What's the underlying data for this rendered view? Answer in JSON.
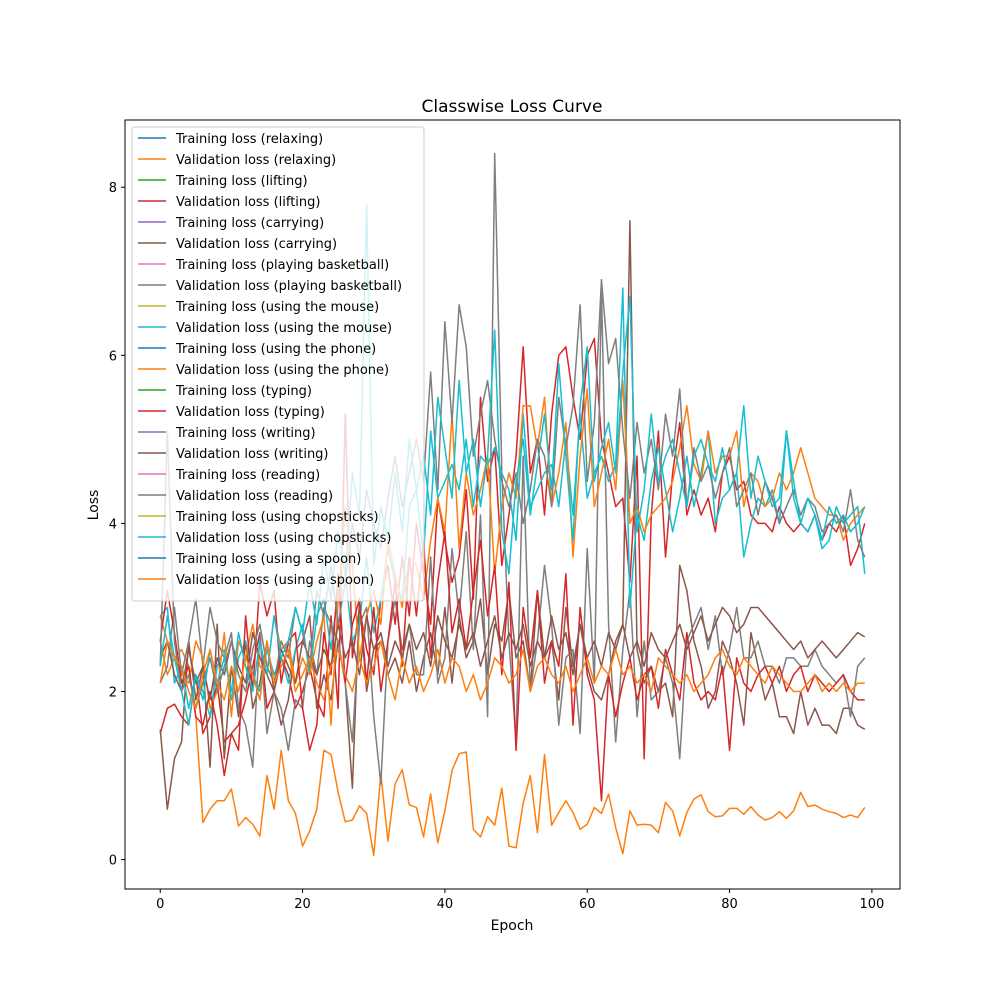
{
  "chart_data": {
    "type": "line",
    "title": "Classwise Loss Curve",
    "xlabel": "Epoch",
    "ylabel": "Loss",
    "xlim": [
      -4.95,
      103.95
    ],
    "ylim": [
      -0.35,
      8.8
    ],
    "xticks": [
      0,
      20,
      40,
      60,
      80,
      100
    ],
    "yticks": [
      0,
      2,
      4,
      6,
      8
    ],
    "grid": false,
    "legend_position": "upper left",
    "series": [
      {
        "name": "Training loss (relaxing)",
        "color": "#1f77b4",
        "values": []
      },
      {
        "name": "Validation loss (relaxing)",
        "color": "#ff7f0e",
        "values": [
          2.6,
          2.2,
          2.4,
          2.5,
          2.3,
          1.7,
          0.44,
          0.6,
          0.7,
          0.7,
          0.84,
          0.4,
          0.5,
          0.42,
          0.28,
          1.0,
          0.6,
          1.3,
          0.7,
          0.55,
          0.16,
          0.34,
          0.6,
          1.3,
          1.25,
          0.8,
          0.45,
          0.47,
          0.64,
          0.55,
          0.05,
          1.02,
          0.22,
          0.9,
          1.07,
          0.65,
          0.62,
          0.27,
          0.78,
          0.2,
          0.58,
          1.06,
          1.26,
          1.28,
          0.36,
          0.27,
          0.51,
          0.41,
          0.85,
          0.16,
          0.14,
          0.67,
          1.0,
          0.32,
          1.25,
          0.41,
          0.56,
          0.7,
          0.56,
          0.36,
          0.42,
          0.62,
          0.55,
          0.78,
          0.38,
          0.07,
          0.58,
          0.41,
          0.42,
          0.41,
          0.32,
          0.68,
          0.58,
          0.28,
          0.56,
          0.72,
          0.77,
          0.57,
          0.51,
          0.52,
          0.61,
          0.61,
          0.54,
          0.63,
          0.53,
          0.47,
          0.5,
          0.57,
          0.49,
          0.58,
          0.8,
          0.63,
          0.65,
          0.6,
          0.57,
          0.55,
          0.5,
          0.53,
          0.5,
          0.62
        ]
      },
      {
        "name": "Training loss (lifting)",
        "color": "#2ca02c",
        "values": []
      },
      {
        "name": "Validation loss (lifting)",
        "color": "#d62728",
        "values": [
          1.5,
          1.8,
          1.85,
          1.7,
          1.6,
          2.2,
          1.5,
          1.7,
          2.1,
          1.4,
          1.5,
          1.6,
          1.9,
          2.3,
          2.7,
          1.8,
          2.0,
          2.4,
          2.2,
          1.8,
          2.0,
          2.3,
          1.9,
          1.7,
          2.9,
          1.8,
          5.3,
          2.4,
          3.0,
          2.5,
          2.2,
          3.1,
          3.5,
          2.8,
          3.6,
          2.9,
          4.0,
          3.4,
          2.8,
          4.3,
          3.8,
          3.3,
          3.6,
          4.4,
          3.1,
          5.5,
          4.5,
          4.9,
          3.5,
          4.1,
          4.8,
          6.1,
          4.6,
          5.0,
          4.1,
          5.3,
          6.0,
          6.1,
          5.5,
          5.0,
          6.0,
          6.2,
          5.0,
          4.6,
          4.2,
          4.3,
          3.3,
          4.8,
          1.2,
          4.1,
          5.1,
          3.6,
          4.6,
          5.2,
          4.1,
          4.4,
          4.1,
          4.3,
          3.9,
          4.6,
          4.8,
          4.4,
          4.5,
          4.1,
          4.0,
          4.0,
          3.9,
          4.2,
          4.0,
          3.9,
          4.0,
          3.9,
          4.1,
          3.8,
          4.0,
          3.9,
          4.1,
          3.5,
          3.7,
          4.0
        ]
      },
      {
        "name": "Training loss (carrying)",
        "color": "#9467bd",
        "values": []
      },
      {
        "name": "Validation loss (carrying)",
        "color": "#8c564b",
        "values": [
          1.55,
          0.6,
          1.2,
          1.4,
          2.6,
          1.9,
          2.3,
          1.1,
          2.8,
          1.2,
          2.3,
          1.7,
          2.6,
          1.8,
          2.1,
          2.6,
          2.0,
          1.6,
          1.9,
          2.5,
          2.6,
          2.9,
          1.8,
          2.2,
          1.9,
          2.6,
          2.1,
          0.85,
          3.1,
          2.0,
          2.5,
          2.6,
          2.2,
          2.4,
          2.1,
          2.6,
          2.0,
          2.4,
          2.7,
          2.2,
          3.0,
          2.1,
          2.9,
          2.4,
          2.6,
          3.1,
          2.2,
          2.8,
          2.6,
          3.2,
          2.4,
          2.6,
          2.0,
          3.2,
          2.4,
          2.6,
          1.9,
          3.0,
          2.3,
          2.8,
          2.3,
          2.0,
          1.9,
          2.2,
          2.6,
          2.8,
          7.6,
          2.5,
          2.1,
          2.3,
          2.0,
          2.1,
          1.7,
          3.5,
          3.2,
          2.6,
          2.3,
          1.8,
          2.0,
          2.6,
          2.4,
          2.1,
          1.6,
          2.7,
          2.3,
          1.9,
          2.1,
          1.7,
          1.7,
          1.5,
          2.0,
          1.6,
          1.8,
          1.6,
          1.6,
          1.5,
          1.8,
          1.8,
          1.6,
          1.55
        ]
      },
      {
        "name": "Training loss (playing basketball)",
        "color": "#e377c2",
        "values": []
      },
      {
        "name": "Validation loss (playing basketball)",
        "color": "#7f7f7f",
        "values": [
          2.1,
          2.3,
          3.0,
          2.2,
          2.6,
          3.1,
          2.3,
          3.0,
          2.6,
          2.4,
          2.7,
          1.8,
          1.6,
          1.1,
          2.7,
          1.5,
          2.0,
          1.8,
          1.3,
          1.9,
          1.8,
          2.6,
          2.2,
          3.0,
          2.8,
          2.6,
          2.1,
          1.4,
          2.8,
          3.0,
          1.7,
          0.9,
          2.6,
          3.1,
          2.5,
          2.8,
          2.2,
          2.2,
          3.6,
          2.1,
          2.4,
          3.7,
          2.9,
          3.9,
          2.5,
          4.1,
          1.7,
          8.4,
          4.6,
          2.6,
          1.4,
          4.8,
          2.0,
          2.6,
          3.5,
          2.8,
          1.6,
          2.4,
          2.5,
          1.5,
          3.7,
          2.1,
          6.8,
          2.8,
          1.4,
          2.5,
          3.2,
          1.7,
          2.6,
          1.9,
          2.0,
          2.4,
          2.1,
          1.2,
          2.6,
          2.8,
          3.0,
          2.5,
          2.9,
          2.2,
          2.5,
          3.0,
          2.4,
          2.4,
          2.6,
          2.3,
          2.3,
          2.1,
          2.4,
          2.4,
          2.3,
          2.3,
          2.5,
          2.3,
          2.2,
          2.1,
          2.2,
          1.7,
          2.3,
          2.4
        ]
      },
      {
        "name": "Training loss (using the mouse)",
        "color": "#bcbd22",
        "values": []
      },
      {
        "name": "Validation loss (using the mouse)",
        "color": "#17becf",
        "values": [
          2.9,
          3.0,
          2.1,
          2.3,
          1.8,
          2.2,
          2.0,
          1.7,
          2.3,
          2.5,
          1.9,
          2.4,
          2.6,
          2.2,
          2.0,
          2.5,
          2.2,
          2.4,
          2.1,
          2.5,
          2.8,
          2.2,
          2.9,
          3.1,
          2.5,
          3.2,
          3.4,
          2.6,
          2.8,
          3.6,
          2.7,
          3.1,
          3.7,
          3.3,
          3.1,
          4.2,
          4.4,
          3.6,
          5.1,
          4.3,
          4.5,
          4.7,
          4.4,
          5.0,
          4.2,
          4.8,
          4.7,
          4.9,
          4.6,
          4.4,
          3.8,
          5.3,
          4.2,
          4.4,
          4.6,
          4.7,
          4.2,
          5.0,
          4.1,
          5.3,
          4.3,
          4.6,
          4.8,
          4.5,
          4.7,
          6.8,
          3.0,
          4.1,
          3.8,
          4.5,
          4.9,
          4.4,
          3.9,
          4.3,
          4.8,
          4.2,
          4.6,
          5.1,
          4.0,
          4.3,
          4.4,
          4.6,
          3.6,
          4.0,
          4.3,
          4.2,
          4.4,
          4.0,
          5.1,
          4.3,
          4.0,
          3.9,
          4.1,
          3.7,
          3.8,
          4.2,
          4.0,
          4.1,
          4.2,
          3.4
        ]
      },
      {
        "name": "Training loss (using the phone)",
        "color": "#1f77b4",
        "values": []
      },
      {
        "name": "Validation loss (using the phone)",
        "color": "#ff7f0e",
        "values": [
          2.9,
          2.6,
          2.4,
          2.2,
          2.1,
          2.6,
          2.4,
          1.8,
          2.0,
          2.7,
          1.7,
          2.6,
          2.4,
          2.8,
          2.3,
          2.2,
          2.9,
          2.5,
          2.6,
          2.1,
          2.4,
          2.2,
          2.6,
          2.9,
          1.6,
          3.1,
          4.2,
          3.5,
          2.4,
          2.9,
          3.2,
          2.8,
          3.8,
          3.4,
          3.0,
          3.6,
          3.5,
          3.1,
          3.8,
          4.3,
          3.9,
          5.3,
          3.7,
          4.6,
          4.1,
          4.4,
          4.8,
          3.4,
          4.2,
          4.6,
          4.3,
          5.4,
          5.4,
          4.9,
          5.5,
          4.2,
          4.6,
          5.2,
          3.6,
          4.8,
          5.6,
          4.2,
          4.6,
          5.0,
          4.4,
          5.7,
          4.0,
          4.2,
          3.9,
          4.1,
          4.2,
          4.3,
          4.5,
          4.9,
          5.4,
          4.7,
          4.5,
          5.1,
          4.6,
          4.8,
          4.8,
          5.1,
          4.2,
          4.6,
          4.5,
          4.2,
          4.3,
          4.6,
          4.4,
          4.6,
          4.9,
          4.6,
          4.3,
          4.2,
          4.1,
          4.1,
          3.8,
          4.0,
          4.1,
          4.2
        ]
      },
      {
        "name": "Training loss (typing)",
        "color": "#2ca02c",
        "values": []
      },
      {
        "name": "Validation loss (typing)",
        "color": "#d62728",
        "values": [
          2.6,
          3.2,
          2.7,
          2.1,
          2.3,
          1.7,
          1.6,
          2.0,
          1.6,
          1.0,
          1.5,
          1.3,
          2.9,
          2.0,
          3.3,
          2.9,
          3.2,
          2.1,
          2.6,
          2.7,
          1.8,
          1.3,
          1.6,
          2.7,
          2.2,
          3.4,
          2.1,
          2.8,
          3.1,
          2.1,
          3.0,
          2.0,
          2.6,
          3.3,
          2.3,
          3.6,
          2.9,
          3.8,
          2.4,
          3.3,
          3.9,
          2.7,
          3.1,
          2.5,
          3.2,
          3.8,
          2.9,
          3.5,
          2.2,
          3.3,
          1.3,
          3.0,
          2.4,
          3.2,
          2.1,
          2.6,
          2.3,
          3.4,
          1.6,
          3.0,
          2.2,
          1.9,
          0.7,
          2.2,
          1.7,
          2.1,
          2.4,
          1.9,
          2.2,
          2.3,
          1.8,
          2.5,
          2.2,
          1.9,
          2.7,
          2.1,
          1.9,
          2.0,
          1.9,
          2.3,
          1.3,
          2.4,
          2.1,
          2.0,
          2.2,
          2.3,
          2.1,
          2.3,
          2.0,
          2.2,
          2.3,
          2.0,
          2.2,
          2.1,
          2.0,
          2.1,
          2.2,
          2.0,
          1.9,
          1.9
        ]
      },
      {
        "name": "Training loss (writing)",
        "color": "#9467bd",
        "values": []
      },
      {
        "name": "Validation loss (writing)",
        "color": "#8c564b",
        "values": [
          2.4,
          2.6,
          2.2,
          2.0,
          2.5,
          2.1,
          2.3,
          1.9,
          2.4,
          2.2,
          2.6,
          2.3,
          2.1,
          2.7,
          2.4,
          2.2,
          2.0,
          2.5,
          2.3,
          2.1,
          2.6,
          2.4,
          2.2,
          2.5,
          2.3,
          2.8,
          2.4,
          2.6,
          2.2,
          2.9,
          2.5,
          2.7,
          2.3,
          2.6,
          2.4,
          2.8,
          2.5,
          2.7,
          2.3,
          2.9,
          2.6,
          2.4,
          2.8,
          2.5,
          2.7,
          2.3,
          2.6,
          2.9,
          2.4,
          2.7,
          2.5,
          2.8,
          2.3,
          2.6,
          2.4,
          2.9,
          2.5,
          2.7,
          2.2,
          2.8,
          2.4,
          2.6,
          2.3,
          2.7,
          2.5,
          2.8,
          2.4,
          2.6,
          2.3,
          2.7,
          2.5,
          2.4,
          2.6,
          2.8,
          2.5,
          2.7,
          2.9,
          2.6,
          2.8,
          3.0,
          2.9,
          2.7,
          2.8,
          3.0,
          3.0,
          2.9,
          2.8,
          2.7,
          2.6,
          2.5,
          2.6,
          2.4,
          2.5,
          2.6,
          2.5,
          2.4,
          2.5,
          2.6,
          2.7,
          2.65
        ]
      },
      {
        "name": "Training loss (reading)",
        "color": "#e377c2",
        "values": []
      },
      {
        "name": "Validation loss (reading)",
        "color": "#7f7f7f",
        "values": [
          2.3,
          5.1,
          2.6,
          2.0,
          2.2,
          1.8,
          2.1,
          2.4,
          2.0,
          2.3,
          2.6,
          2.2,
          2.0,
          2.5,
          2.8,
          2.3,
          2.1,
          2.6,
          2.4,
          3.0,
          2.7,
          2.3,
          3.2,
          2.9,
          3.5,
          2.8,
          3.3,
          4.0,
          3.6,
          4.4,
          4.0,
          3.7,
          4.3,
          4.8,
          4.2,
          4.6,
          5.0,
          4.5,
          5.8,
          4.4,
          6.4,
          5.2,
          6.6,
          6.1,
          4.8,
          5.3,
          5.7,
          5.0,
          4.5,
          4.2,
          4.6,
          4.0,
          4.4,
          5.0,
          4.8,
          4.2,
          5.5,
          4.9,
          5.4,
          6.6,
          4.5,
          5.2,
          6.9,
          5.9,
          6.2,
          5.1,
          4.3,
          5.2,
          4.6,
          5.0,
          4.4,
          5.3,
          4.8,
          5.6,
          4.2,
          4.9,
          4.5,
          4.7,
          4.3,
          4.6,
          4.9,
          4.2,
          4.4,
          4.6,
          4.1,
          4.5,
          4.3,
          4.0,
          4.2,
          4.4,
          4.1,
          4.3,
          4.2,
          3.9,
          4.0,
          4.1,
          3.9,
          4.4,
          3.8,
          3.6
        ]
      },
      {
        "name": "Training loss (using chopsticks)",
        "color": "#bcbd22",
        "values": []
      },
      {
        "name": "Validation loss (using chopsticks)",
        "color": "#17becf",
        "values": [
          2.3,
          2.9,
          2.4,
          2.0,
          1.6,
          2.2,
          1.9,
          2.5,
          2.1,
          2.4,
          2.0,
          2.7,
          2.3,
          2.0,
          2.6,
          2.2,
          2.9,
          2.4,
          2.6,
          3.0,
          2.7,
          3.3,
          2.8,
          3.6,
          3.1,
          3.9,
          3.4,
          4.6,
          4.1,
          7.8,
          3.5,
          4.2,
          3.8,
          4.6,
          3.9,
          5.0,
          4.4,
          4.8,
          4.1,
          5.5,
          4.9,
          4.3,
          5.7,
          4.6,
          5.0,
          4.2,
          4.8,
          6.3,
          3.9,
          3.4,
          4.5,
          5.0,
          4.1,
          4.7,
          5.3,
          4.4,
          5.9,
          4.8,
          3.8,
          5.4,
          6.1,
          4.5,
          4.9,
          5.2,
          4.6,
          5.8,
          6.7,
          3.9,
          4.4,
          5.3,
          4.5,
          4.8,
          5.0,
          4.6,
          4.2,
          4.8,
          5.0,
          4.7,
          4.5,
          4.9,
          4.4,
          4.6,
          5.4,
          4.3,
          4.8,
          4.5,
          4.2,
          4.3,
          5.1,
          4.5,
          4.0,
          4.3,
          4.1,
          3.8,
          4.2,
          4.0,
          4.1,
          3.9,
          4.0,
          4.2
        ]
      },
      {
        "name": "Training loss (using a spoon)",
        "color": "#1f77b4",
        "values": []
      },
      {
        "name": "Validation loss (using a spoon)",
        "color": "#ff7f0e",
        "values": [
          2.1,
          2.6,
          2.4,
          2.3,
          2.0,
          1.8,
          2.2,
          2.5,
          2.1,
          1.9,
          2.3,
          2.0,
          2.4,
          2.2,
          1.9,
          2.6,
          2.1,
          2.3,
          2.5,
          2.0,
          2.2,
          2.4,
          2.1,
          1.9,
          2.3,
          2.5,
          2.2,
          2.0,
          2.4,
          2.1,
          2.3,
          2.6,
          2.2,
          1.9,
          2.4,
          2.1,
          2.3,
          2.0,
          2.2,
          2.5,
          2.1,
          2.4,
          2.3,
          2.0,
          2.2,
          1.9,
          2.1,
          2.4,
          2.3,
          2.1,
          2.2,
          2.5,
          2.0,
          2.3,
          2.4,
          2.2,
          2.1,
          2.3,
          2.0,
          2.2,
          2.4,
          2.1,
          2.3,
          2.2,
          2.5,
          2.2,
          2.3,
          2.1,
          2.2,
          2.0,
          2.4,
          2.3,
          2.2,
          2.1,
          2.2,
          2.0,
          2.1,
          2.2,
          2.4,
          2.5,
          2.3,
          2.2,
          2.4,
          2.3,
          2.2,
          2.1,
          2.3,
          2.2,
          2.1,
          2.0,
          2.0,
          2.1,
          2.2,
          2.0,
          2.1,
          2.0,
          2.1,
          2.0,
          2.1,
          2.1
        ]
      }
    ]
  }
}
